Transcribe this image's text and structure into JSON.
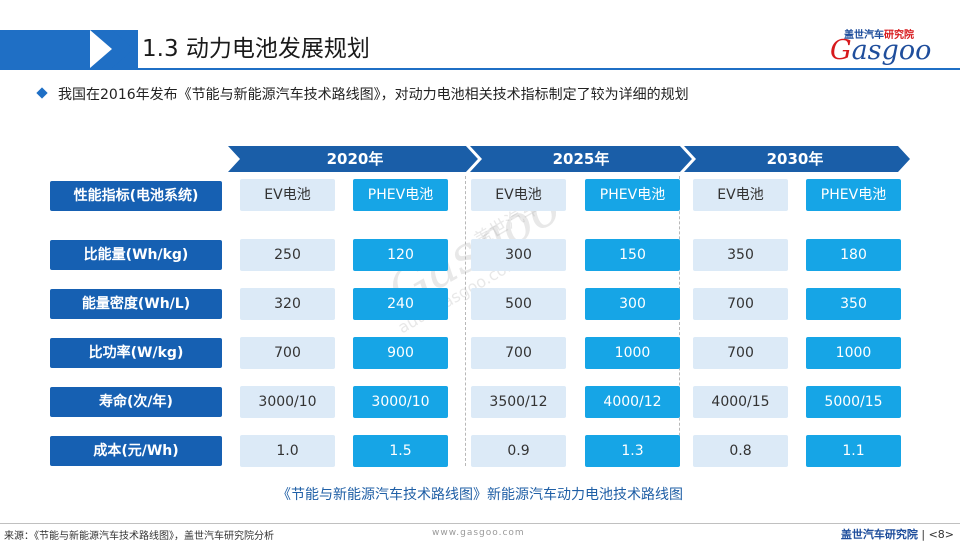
{
  "header": {
    "title": "1.3 动力电池发展规划",
    "logo_top_cn": "盖世汽车",
    "logo_top_red": "研究院",
    "logo_main_g": "G",
    "logo_main_rest": "asgoo"
  },
  "intro": "我国在2016年发布《节能与新能源汽车技术路线图》，对动力电池相关技术指标制定了较为详细的规划",
  "years": [
    "2020年",
    "2025年",
    "2030年"
  ],
  "table": {
    "header_label": "性能指标(电池系统)",
    "columns": [
      "EV电池",
      "PHEV电池",
      "EV电池",
      "PHEV电池",
      "EV电池",
      "PHEV电池"
    ],
    "rows": [
      {
        "label": "比能量(Wh/kg)",
        "values": [
          "250",
          "120",
          "300",
          "150",
          "350",
          "180"
        ]
      },
      {
        "label": "能量密度(Wh/L)",
        "values": [
          "320",
          "240",
          "500",
          "300",
          "700",
          "350"
        ]
      },
      {
        "label": "比功率(W/kg)",
        "values": [
          "700",
          "900",
          "700",
          "1000",
          "700",
          "1000"
        ]
      },
      {
        "label": "寿命(次/年)",
        "values": [
          "3000/10",
          "3000/10",
          "3500/12",
          "4000/12",
          "4000/15",
          "5000/15"
        ]
      },
      {
        "label": "成本(元/Wh)",
        "values": [
          "1.0",
          "1.5",
          "0.9",
          "1.3",
          "0.8",
          "1.1"
        ]
      }
    ]
  },
  "caption": "《节能与新能源汽车技术路线图》新能源汽车动力电池技术路线图",
  "watermark": {
    "cn": "盖世汽车",
    "logo": "Gasgoo",
    "url": "auto.gasgoo.com"
  },
  "footer": {
    "source": "来源：《节能与新能源汽车技术路线图》，盖世汽车研究院分析",
    "site": "www.gasgoo.com",
    "org": "盖世汽车研究院",
    "page": "<8>"
  },
  "colors": {
    "primary": "#1f6fc5",
    "label_bg": "#1660b2",
    "ev_bg": "#dceaf7",
    "phev_bg": "#16a5e6"
  }
}
